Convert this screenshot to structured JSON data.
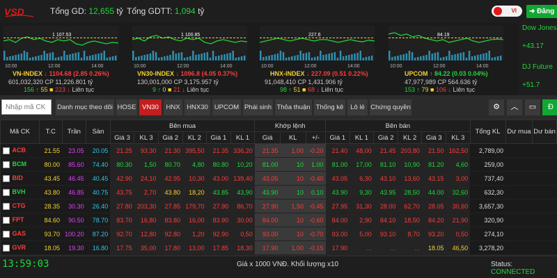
{
  "header": {
    "logo_text": "VSD",
    "tong_gd_label": "Tổng GD:",
    "tong_gd_value": "12,655",
    "tong_gd_unit": "tỷ",
    "tong_gdtt_label": "Tổng GDTT:",
    "tong_gdtt_value": "1,094",
    "tong_gdtt_unit": "tỷ",
    "lang": "VI",
    "login_label": "Đăng"
  },
  "indices": [
    {
      "name": "VN-INDEX",
      "arrow": "↓",
      "value": "1104.68",
      "change": "(2.85 0.26%)",
      "color": "#ff3b3b",
      "vol": "601,032,320",
      "cp_label": "CP",
      "val": "11,226.801 tỷ",
      "up": "156",
      "up_arrow": "↑",
      "ref": "55",
      "ref_sym": "■",
      "down": "223",
      "down_arrow": "↓",
      "status": "Liên tục",
      "ref_level": "1 107.53",
      "times": [
        "10:00",
        "12:00",
        "14:00"
      ]
    },
    {
      "name": "VN30-INDEX",
      "arrow": "↓",
      "value": "1096.8",
      "change": "(4.05 0.37%)",
      "color": "#ff3b3b",
      "vol": "130,001,000",
      "cp_label": "CP",
      "val": "3,175.957 tỷ",
      "up": "9",
      "up_arrow": "↑",
      "ref": "0",
      "ref_sym": "■",
      "down": "21",
      "down_arrow": "↓",
      "status": "Liên tục",
      "ref_level": "1 100.85",
      "times": [
        "10:00",
        "12:00",
        "14:00"
      ]
    },
    {
      "name": "HNX-INDEX",
      "arrow": "↓",
      "value": "227.09",
      "change": "(0.51 0.22%)",
      "color": "#ff3b3b",
      "vol": "91,048,410",
      "cp_label": "CP",
      "val": "1,431.906 tỷ",
      "up": "98",
      "up_arrow": "↑",
      "ref": "51",
      "ref_sym": "■",
      "down": "68",
      "down_arrow": "↓",
      "status": "Liên tục",
      "ref_level": "227.6",
      "times": [
        "10:00",
        "12:00",
        "14:00"
      ]
    },
    {
      "name": "UPCOM",
      "arrow": "↑",
      "value": "84.22",
      "change": "(0.03 0.04%)",
      "color": "#21d63b",
      "vol": "47,977,989",
      "cp_label": "CP",
      "val": "564.636 tỷ",
      "up": "153",
      "up_arrow": "↑",
      "ref": "79",
      "ref_sym": "■",
      "down": "106",
      "down_arrow": "↓",
      "status": "Liên tục",
      "ref_level": "84.19",
      "times": [
        "10:00",
        "12:00",
        "14:00"
      ]
    }
  ],
  "world": {
    "dow_label": "Dow Jones",
    "dow_value": "+43.17",
    "djf_label": "DJ Future",
    "djf_value": "+51.7"
  },
  "toolbar": {
    "search_placeholder": "Nhập mã CK",
    "tabs": [
      "Danh mục theo dõi",
      "HOSE",
      "VN30",
      "HNX",
      "HNX30",
      "UPCOM",
      "Phái sinh",
      "Thỏa thuận",
      "Thống kê",
      "Lô lẻ",
      "Chứng quyền"
    ],
    "active_tab": "VN30",
    "gear_icon": "gear-icon",
    "collapse_icon": "chevron-up-icon",
    "monitor_icon": "monitor-icon",
    "extra_btn_label": "Đ"
  },
  "table": {
    "group_headers": {
      "ben_mua": "Bên mua",
      "khop_lenh": "Khớp lệnh",
      "ben_ban": "Bên bán"
    },
    "columns": {
      "ma_ck": "Mã CK",
      "tc": "T.C",
      "tran": "Trần",
      "san": "Sàn",
      "gia3": "Giá 3",
      "kl3": "KL 3",
      "gia2": "Giá 2",
      "kl2": "KL 2",
      "gia1": "Giá 1",
      "kl1": "KL 1",
      "gia": "Giá",
      "kl": "KL",
      "pm": "+/-",
      "tong_kl": "Tổng KL",
      "du_mua": "Dư mua",
      "du_ban": "Dư bán"
    },
    "rows": [
      {
        "sym": "ACB",
        "tc": "21.55",
        "tran": "23.05",
        "san": "20.05",
        "b3": "21.25",
        "bk3": "93,30",
        "b2": "21.30",
        "bk2": "395,50",
        "b1": "21.35",
        "bk1": "336,20",
        "p": "21.35",
        "kl": "1,00",
        "ch": "-0.20",
        "s1": "21.40",
        "sk1": "48,00",
        "s2": "21.45",
        "sk2": "203,80",
        "s3": "21.50",
        "sk3": "162,50",
        "total": "2,789,00",
        "c": {
          "sym": "#ff3b3b",
          "b3": "#ff3b3b",
          "b2": "#ff3b3b",
          "b1": "#ff3b3b",
          "p": "#ff3b3b",
          "s1": "#ff3b3b",
          "s2": "#ff3b3b",
          "s3": "#ff3b3b"
        }
      },
      {
        "sym": "BCM",
        "tc": "80.00",
        "tran": "85.60",
        "san": "74.40",
        "b3": "80.30",
        "bk3": "1,50",
        "b2": "80.70",
        "bk2": "4,80",
        "b1": "80.80",
        "bk1": "10,20",
        "p": "81.00",
        "kl": "10",
        "ch": "1.00",
        "s1": "81.00",
        "sk1": "17,00",
        "s2": "81.10",
        "sk2": "10,90",
        "s3": "81.20",
        "sk3": "4,60",
        "total": "259,00",
        "c": {
          "sym": "#21d63b",
          "b3": "#21d63b",
          "b2": "#21d63b",
          "b1": "#21d63b",
          "p": "#21d63b",
          "s1": "#21d63b",
          "s2": "#21d63b",
          "s3": "#21d63b"
        }
      },
      {
        "sym": "BID",
        "tc": "43.45",
        "tran": "46.45",
        "san": "40.45",
        "b3": "42.90",
        "bk3": "24,10",
        "b2": "42.95",
        "bk2": "10,30",
        "b1": "43.00",
        "bk1": "139,40",
        "p": "43.05",
        "kl": "10",
        "ch": "-0.40",
        "s1": "43.05",
        "sk1": "6,30",
        "s2": "43.10",
        "sk2": "13,60",
        "s3": "43.15",
        "sk3": "3,00",
        "total": "737,40",
        "c": {
          "sym": "#ff3b3b",
          "b3": "#ff3b3b",
          "b2": "#ff3b3b",
          "b1": "#ff3b3b",
          "p": "#ff3b3b",
          "s1": "#ff3b3b",
          "s2": "#ff3b3b",
          "s3": "#ff3b3b"
        }
      },
      {
        "sym": "BVH",
        "tc": "43.80",
        "tran": "46.85",
        "san": "40.75",
        "b3": "43.75",
        "bk3": "2,70",
        "b2": "43.80",
        "bk2": "18,20",
        "b1": "43.85",
        "bk1": "43,90",
        "p": "43.90",
        "kl": "10",
        "ch": "0.10",
        "s1": "43.90",
        "sk1": "9,30",
        "s2": "43.95",
        "sk2": "28,50",
        "s3": "44.00",
        "sk3": "32,60",
        "total": "632,30",
        "c": {
          "sym": "#21d63b",
          "b3": "#ff3b3b",
          "b2": "#f5d22e",
          "b1": "#21d63b",
          "p": "#21d63b",
          "s1": "#21d63b",
          "s2": "#21d63b",
          "s3": "#21d63b"
        }
      },
      {
        "sym": "CTG",
        "tc": "28.35",
        "tran": "30.30",
        "san": "26.40",
        "b3": "27.80",
        "bk3": "203,30",
        "b2": "27.85",
        "bk2": "179,70",
        "b1": "27.90",
        "bk1": "86,70",
        "p": "27.90",
        "kl": "1,50",
        "ch": "-0.45",
        "s1": "27.95",
        "sk1": "31,30",
        "s2": "28.00",
        "sk2": "62,70",
        "s3": "28.05",
        "sk3": "30,60",
        "total": "3,657,30",
        "c": {
          "sym": "#ff3b3b",
          "b3": "#ff3b3b",
          "b2": "#ff3b3b",
          "b1": "#ff3b3b",
          "p": "#ff3b3b",
          "s1": "#ff3b3b",
          "s2": "#ff3b3b",
          "s3": "#ff3b3b"
        }
      },
      {
        "sym": "FPT",
        "tc": "84.60",
        "tran": "90.50",
        "san": "78.70",
        "b3": "83.70",
        "bk3": "16,80",
        "b2": "83.80",
        "bk2": "16,00",
        "b1": "83.90",
        "bk1": "30,00",
        "p": "84.00",
        "kl": "10",
        "ch": "-0.60",
        "s1": "84.00",
        "sk1": "2,90",
        "s2": "84.10",
        "sk2": "18,50",
        "s3": "84.20",
        "sk3": "21,90",
        "total": "320,90",
        "c": {
          "sym": "#ff3b3b",
          "b3": "#ff3b3b",
          "b2": "#ff3b3b",
          "b1": "#ff3b3b",
          "p": "#ff3b3b",
          "s1": "#ff3b3b",
          "s2": "#ff3b3b",
          "s3": "#ff3b3b"
        }
      },
      {
        "sym": "GAS",
        "tc": "93.70",
        "tran": "100.20",
        "san": "87.20",
        "b3": "92.70",
        "bk3": "12,80",
        "b2": "92.80",
        "bk2": "1,20",
        "b1": "92.90",
        "bk1": "0,50",
        "p": "93.00",
        "kl": "10",
        "ch": "-0.70",
        "s1": "93.00",
        "sk1": "5,00",
        "s2": "93.10",
        "sk2": "8,70",
        "s3": "93.20",
        "sk3": "0,50",
        "total": "274,10",
        "c": {
          "sym": "#ff3b3b",
          "b3": "#ff3b3b",
          "b2": "#ff3b3b",
          "b1": "#ff3b3b",
          "p": "#ff3b3b",
          "s1": "#ff3b3b",
          "s2": "#ff3b3b",
          "s3": "#ff3b3b"
        }
      },
      {
        "sym": "GVR",
        "tc": "18.05",
        "tran": "19.30",
        "san": "16.80",
        "b3": "17.75",
        "bk3": "35,00",
        "b2": "17.80",
        "bk2": "13,00",
        "b1": "17.85",
        "bk1": "18,30",
        "p": "17.90",
        "kl": "1,00",
        "ch": "-0.15",
        "s1": "17.90",
        "sk1": "...",
        "s2": "...",
        "sk2": "...",
        "s3": "18.05",
        "sk3": "46,50",
        "total": "3,278,20",
        "c": {
          "sym": "#ff3b3b",
          "b3": "#ff3b3b",
          "b2": "#ff3b3b",
          "b1": "#ff3b3b",
          "p": "#ff3b3b",
          "s1": "#ff3b3b",
          "s2": "#ff3b3b",
          "s3": "#f5d22e"
        }
      }
    ]
  },
  "footer": {
    "clock": "13:59:03",
    "note": "Giá x 1000 VNĐ. Khối lượng x10",
    "status_label": "Status:",
    "status_value": "CONNECTED"
  },
  "colors": {
    "up": "#21d63b",
    "down": "#ff3b3b",
    "ref": "#f5d22e",
    "ceiling": "#e040fb",
    "floor": "#2fc6e8",
    "active_tab": "#c41d1d"
  }
}
